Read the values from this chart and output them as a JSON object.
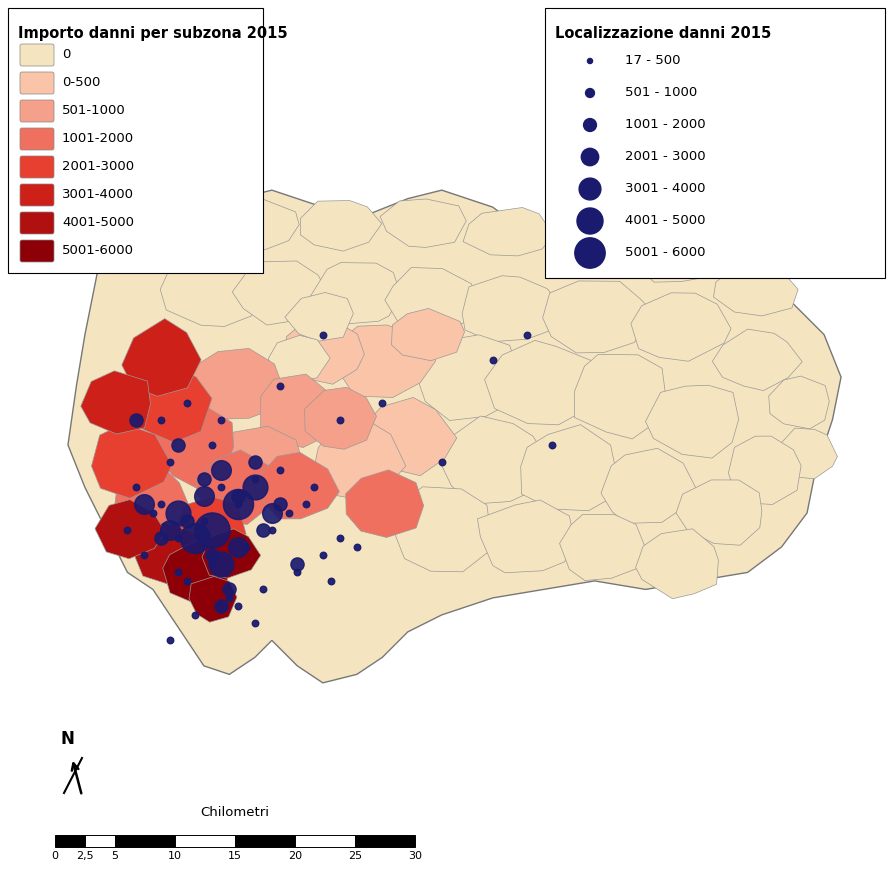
{
  "left_legend_title": "Importo danni per subzona 2015",
  "left_legend_labels": [
    "0",
    "0-500",
    "501-1000",
    "1001-2000",
    "2001-3000",
    "3001-4000",
    "4001-5000",
    "5001-6000"
  ],
  "left_legend_colors": [
    "#f5e4c0",
    "#f9c4a8",
    "#f5a08a",
    "#f07060",
    "#e84030",
    "#cc2018",
    "#b01010",
    "#8e0008"
  ],
  "right_legend_title": "Localizzazione danni 2015",
  "right_legend_labels": [
    "17 - 500",
    "501 - 1000",
    "1001 - 2000",
    "2001 - 3000",
    "3001 - 4000",
    "4001 - 5000",
    "5001 - 6000"
  ],
  "right_legend_sizes": [
    18,
    55,
    115,
    210,
    330,
    470,
    640
  ],
  "dot_color": "#1a1a6e",
  "map_bg_color": "#f5e4c0",
  "border_color": "#aaaaaa",
  "scalebar_label": "Chilometri",
  "scalebar_ticks": [
    "0",
    "2,5",
    "5",
    "10",
    "15",
    "20",
    "25",
    "30"
  ],
  "north_arrow_label": "N",
  "background_color": "#ffffff",
  "title_fontsize": 10.5,
  "legend_fontsize": 9.5
}
